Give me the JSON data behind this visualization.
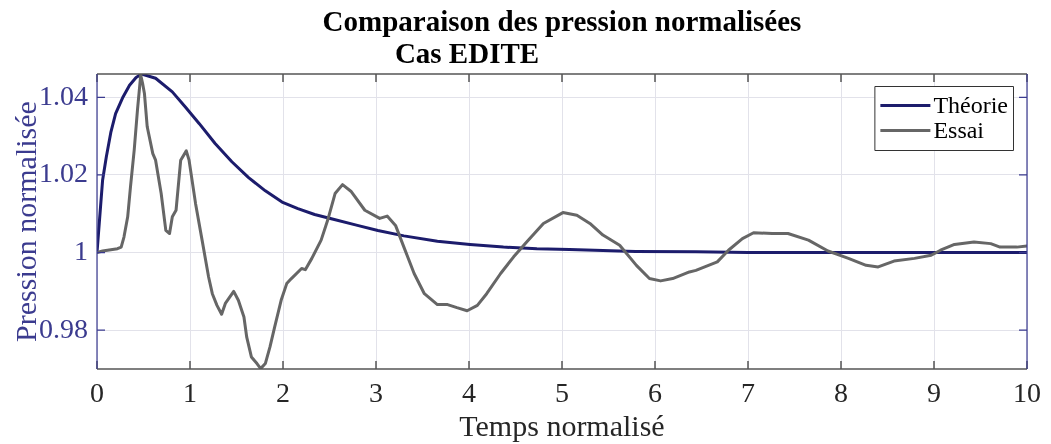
{
  "chart_data": {
    "type": "line",
    "title": "Comparaison des pression normalisées",
    "subtitle": "Cas EDITE",
    "xlabel": "Temps normalisé",
    "ylabel": "Pression normalisée",
    "xlim": [
      0,
      10
    ],
    "xticks": [
      0,
      1,
      2,
      3,
      4,
      5,
      6,
      7,
      8,
      9,
      10
    ],
    "ylim": [
      0.97,
      1.046
    ],
    "yticks": [
      0.98,
      1,
      1.02,
      1.04
    ],
    "grid": true,
    "legend": "top right",
    "marker": "none",
    "line_style": "solid",
    "series": [
      {
        "name": "Théorie",
        "color": "#1c1c6c",
        "x": [
          0,
          0.06,
          0.1,
          0.15,
          0.2,
          0.28,
          0.35,
          0.42,
          0.48,
          0.63,
          0.81,
          0.95,
          1.1,
          1.27,
          1.45,
          1.63,
          1.81,
          1.99,
          2.16,
          2.34,
          2.52,
          2.8,
          3.02,
          3.3,
          3.66,
          4.01,
          4.37,
          4.73,
          5.08,
          5.44,
          5.79,
          6.44,
          7,
          8,
          9,
          10
        ],
        "values": [
          1,
          1.0186,
          1.0246,
          1.0311,
          1.0358,
          1.0401,
          1.0431,
          1.0451,
          1.046,
          1.0449,
          1.0414,
          1.0375,
          1.0332,
          1.0281,
          1.0234,
          1.0193,
          1.0159,
          1.013,
          1.0113,
          1.0098,
          1.0087,
          1.007,
          1.0057,
          1.0043,
          1.0029,
          1.0021,
          1.0014,
          1.001,
          1.0008,
          1.0005,
          1.0003,
          1.0002,
          1,
          1,
          1,
          1
        ]
      },
      {
        "name": "Essai",
        "color": "#666666",
        "x": [
          0,
          0.06,
          0.22,
          0.26,
          0.29,
          0.33,
          0.36,
          0.4,
          0.435,
          0.47,
          0.49,
          0.51,
          0.54,
          0.6,
          0.63,
          0.69,
          0.74,
          0.78,
          0.81,
          0.85,
          0.9,
          0.96,
          0.99,
          1.06,
          1.13,
          1.2,
          1.24,
          1.29,
          1.34,
          1.38,
          1.47,
          1.52,
          1.58,
          1.61,
          1.66,
          1.72,
          1.76,
          1.81,
          1.86,
          1.91,
          1.98,
          2.04,
          2.09,
          2.2,
          2.24,
          2.31,
          2.41,
          2.48,
          2.56,
          2.64,
          2.73,
          2.88,
          3.04,
          3.12,
          3.21,
          3.3,
          3.41,
          3.52,
          3.66,
          3.77,
          3.87,
          3.98,
          4.09,
          4.19,
          4.34,
          4.48,
          4.62,
          4.8,
          5.01,
          5.16,
          5.3,
          5.44,
          5.62,
          5.8,
          5.94,
          6.06,
          6.19,
          6.37,
          6.44,
          6.67,
          6.79,
          6.94,
          7.06,
          7.26,
          7.43,
          7.65,
          7.86,
          8.08,
          8.27,
          8.4,
          8.57,
          8.79,
          8.97,
          9.07,
          9.22,
          9.43,
          9.61,
          9.71,
          9.89,
          10
        ],
        "values": [
          1,
          1.0004,
          1.001,
          1.0014,
          1.004,
          1.0092,
          1.0169,
          1.0264,
          1.0367,
          1.0457,
          1.0436,
          1.041,
          1.0324,
          1.0255,
          1.0238,
          1.0152,
          1.0057,
          1.0049,
          1.0092,
          1.0109,
          1.0238,
          1.0262,
          1.0238,
          1.0126,
          1.0032,
          0.9937,
          0.9894,
          0.9864,
          0.9841,
          0.9869,
          0.99,
          0.9877,
          0.9834,
          0.9782,
          0.9731,
          0.9714,
          0.9701,
          0.9714,
          0.9757,
          0.9808,
          0.9877,
          0.992,
          0.9933,
          0.9959,
          0.9956,
          0.9985,
          1.0032,
          1.0083,
          1.0152,
          1.0175,
          1.0158,
          1.0109,
          1.0088,
          1.0094,
          1.007,
          1.0014,
          0.9946,
          0.9894,
          0.9866,
          0.9866,
          0.9858,
          0.985,
          0.9864,
          0.9894,
          0.9946,
          0.9989,
          1.0027,
          1.0075,
          1.0103,
          1.0096,
          1.0075,
          1.0045,
          1.0019,
          0.9967,
          0.9933,
          0.9927,
          0.9933,
          0.995,
          0.9954,
          0.9976,
          1.0006,
          1.0036,
          1.0051,
          1.0049,
          1.0049,
          1.0032,
          1.0004,
          0.9985,
          0.9967,
          0.9963,
          0.9978,
          0.9985,
          0.9993,
          1.0006,
          1.0021,
          1.0027,
          1.0023,
          1.0014,
          1.0014,
          1.0017
        ]
      }
    ]
  }
}
